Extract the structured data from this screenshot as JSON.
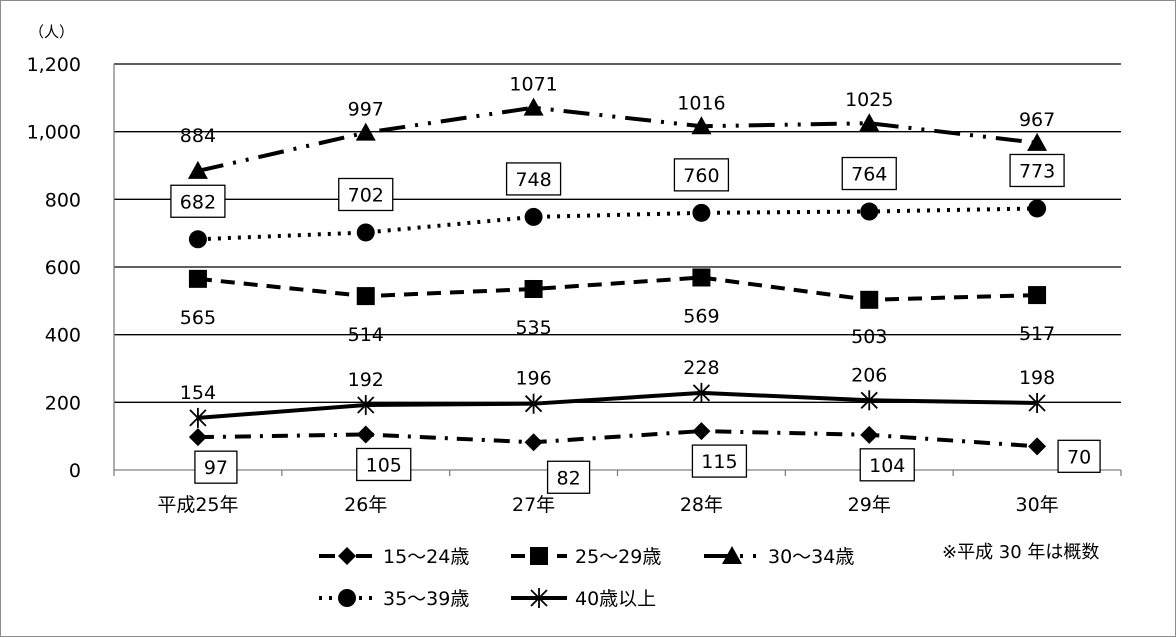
{
  "chart_data": {
    "type": "line",
    "title": "",
    "unit_label": "（人）",
    "xlabel": "",
    "ylabel": "",
    "categories": [
      "平成25年",
      "26年",
      "27年",
      "28年",
      "29年",
      "30年"
    ],
    "ylim": [
      0,
      1200
    ],
    "yticks": [
      0,
      200,
      400,
      600,
      800,
      1000,
      1200
    ],
    "ytick_labels": [
      "0",
      "200",
      "400",
      "600",
      "800",
      "1,000",
      "1,200"
    ],
    "grid": true,
    "legend_position": "bottom",
    "note": "※平成 30 年は概数",
    "series": [
      {
        "name": "15～24歳",
        "values": [
          97,
          105,
          82,
          115,
          104,
          70
        ],
        "marker": "diamond",
        "dash": "dash-dot",
        "boxed_labels": true,
        "label_side": "below"
      },
      {
        "name": "25～29歳",
        "values": [
          565,
          514,
          535,
          569,
          503,
          517
        ],
        "marker": "square",
        "dash": "dash",
        "boxed_labels": false,
        "label_side": "below"
      },
      {
        "name": "30～34歳",
        "values": [
          884,
          997,
          1071,
          1016,
          1025,
          967
        ],
        "marker": "triangle",
        "dash": "long-dash-dot",
        "boxed_labels": false,
        "label_side": "above"
      },
      {
        "name": "35～39歳",
        "values": [
          682,
          702,
          748,
          760,
          764,
          773
        ],
        "marker": "circle",
        "dash": "dot",
        "boxed_labels": true,
        "label_side": "above"
      },
      {
        "name": "40歳以上",
        "values": [
          154,
          192,
          196,
          228,
          206,
          198
        ],
        "marker": "star",
        "dash": "solid",
        "boxed_labels": false,
        "label_side": "above"
      }
    ],
    "colors": {
      "line": "#000000",
      "grid": "#000000",
      "frame": "#8c8c8c"
    }
  }
}
